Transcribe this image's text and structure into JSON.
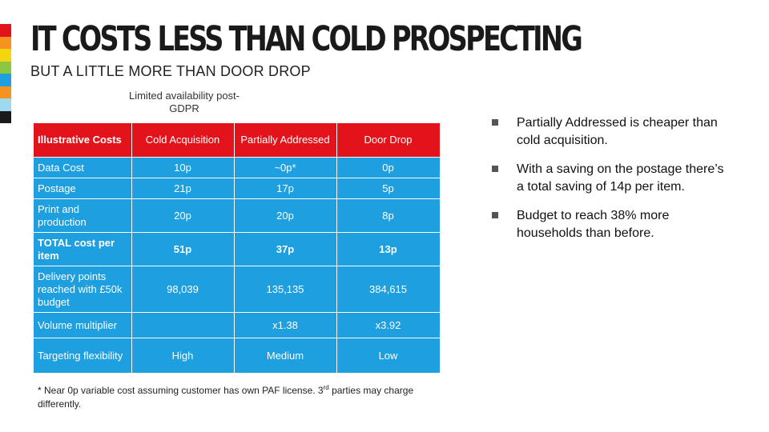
{
  "slide": {
    "title": "IT COSTS LESS THAN COLD PROSPECTING",
    "subtitle": "BUT A LITTLE MORE THAN DOOR DROP",
    "note": "Limited availability post-GDPR",
    "stripe_colors": [
      "#e3131b",
      "#f6931e",
      "#f4d60f",
      "#8dc63f",
      "#1e9fe0",
      "#f6931e",
      "#9fd9f0",
      "#1a1a1a"
    ]
  },
  "table": {
    "header": {
      "row_label": "Illustrative Costs",
      "columns": [
        "Cold Acquisition",
        "Partially Addressed",
        "Door Drop"
      ]
    },
    "rows": [
      {
        "label": "Data Cost",
        "values": [
          "10p",
          "~0p*",
          "0p"
        ]
      },
      {
        "label": "Postage",
        "values": [
          "21p",
          "17p",
          "5p"
        ]
      },
      {
        "label": "Print and production",
        "values": [
          "20p",
          "20p",
          "8p"
        ]
      },
      {
        "label": "TOTAL cost per item",
        "values": [
          "51p",
          "37p",
          "13p"
        ]
      },
      {
        "label": "Delivery points reached with £50k budget",
        "values": [
          "98,039",
          "135,135",
          "384,615"
        ]
      },
      {
        "label": "Volume multiplier",
        "values": [
          "",
          "x1.38",
          "x3.92"
        ]
      },
      {
        "label": "Targeting flexibility",
        "values": [
          "High",
          "Medium",
          "Low"
        ]
      }
    ],
    "colors": {
      "header_bg": "#e3131b",
      "body_bg": "#1e9fe0"
    }
  },
  "footnote": {
    "part1": "* Near 0p variable cost assuming customer has own PAF license. 3",
    "sup": "rd",
    "part2": " parties may charge differently."
  },
  "bullets": [
    "Partially Addressed is cheaper than cold acquisition.",
    "With a saving on the postage there’s a total saving of 14p per item.",
    "Budget to reach 38% more households than before."
  ]
}
